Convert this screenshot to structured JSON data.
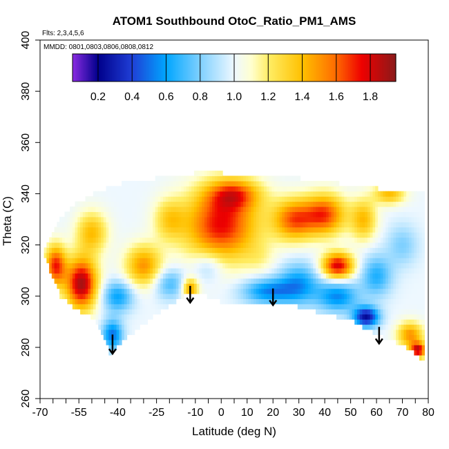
{
  "chart_data": {
    "type": "heatmap",
    "title": "ATOM1 Southbound OtoC_Ratio_PM1_AMS",
    "annotations": {
      "flights": "Flts: 2,3,4,5,6",
      "dates": "MMDD: 0801,0803,0806,0808,0812"
    },
    "xlabel": "Latitude (deg N)",
    "ylabel": "Theta (C)",
    "xlim": [
      -70,
      80
    ],
    "ylim": [
      260,
      400
    ],
    "x_ticks_labeled": [
      -70,
      -55,
      -40,
      -25,
      -10,
      0,
      10,
      20,
      30,
      40,
      50,
      60,
      70,
      80
    ],
    "x_ticks_minor": [
      -65,
      -60,
      -50,
      -45,
      -35,
      -30,
      -20,
      -15,
      -5,
      5,
      15,
      25,
      35,
      45,
      55,
      65,
      75
    ],
    "y_ticks": [
      260,
      280,
      300,
      320,
      340,
      360,
      380,
      400
    ],
    "colorbar": {
      "range": [
        0.05,
        1.95
      ],
      "ticks": [
        0.2,
        0.4,
        0.6,
        0.8,
        1.0,
        1.2,
        1.4,
        1.6,
        1.8
      ],
      "tick_labels": [
        "0.2",
        "0.4",
        "0.6",
        "0.8",
        "1.0",
        "1.2",
        "1.4",
        "1.6",
        "1.8"
      ],
      "stops": [
        {
          "v": 0.05,
          "c": "#8a2be2"
        },
        {
          "v": 0.2,
          "c": "#00008b"
        },
        {
          "v": 0.4,
          "c": "#1f3fd6"
        },
        {
          "v": 0.6,
          "c": "#00a6ff"
        },
        {
          "v": 0.8,
          "c": "#7fd0ff"
        },
        {
          "v": 1.0,
          "c": "#eef8ff"
        },
        {
          "v": 1.1,
          "c": "#ffffd0"
        },
        {
          "v": 1.2,
          "c": "#ffee66"
        },
        {
          "v": 1.4,
          "c": "#ffc000"
        },
        {
          "v": 1.6,
          "c": "#ff6a00"
        },
        {
          "v": 1.75,
          "c": "#ee0000"
        },
        {
          "v": 1.95,
          "c": "#8b1a1a"
        }
      ]
    },
    "field": {
      "lat_range": [
        -68,
        78
      ],
      "lat_step": 1,
      "theta_step": 2,
      "lower_boundary": [
        [
          -68,
          315
        ],
        [
          -62,
          300
        ],
        [
          -56,
          295
        ],
        [
          -50,
          292
        ],
        [
          -46,
          285
        ],
        [
          -43,
          278
        ],
        [
          -35,
          285
        ],
        [
          -25,
          293
        ],
        [
          -15,
          300
        ],
        [
          -12,
          302
        ],
        [
          -5,
          300
        ],
        [
          0,
          298
        ],
        [
          10,
          298
        ],
        [
          20,
          297
        ],
        [
          30,
          296
        ],
        [
          40,
          293
        ],
        [
          50,
          291
        ],
        [
          60,
          285
        ],
        [
          70,
          281
        ],
        [
          76,
          277
        ],
        [
          78,
          275
        ]
      ],
      "upper_boundary": [
        [
          -68,
          318
        ],
        [
          -62,
          330
        ],
        [
          -56,
          336
        ],
        [
          -48,
          341
        ],
        [
          -38,
          344
        ],
        [
          -30,
          345
        ],
        [
          -20,
          347
        ],
        [
          -10,
          348
        ],
        [
          0,
          348
        ],
        [
          10,
          347
        ],
        [
          20,
          346
        ],
        [
          30,
          346
        ],
        [
          40,
          345
        ],
        [
          50,
          343
        ],
        [
          60,
          342
        ],
        [
          70,
          341
        ],
        [
          78,
          340
        ]
      ],
      "blobs": [
        {
          "lat": -54,
          "th": 305,
          "amp": 0.9,
          "rx": 6,
          "ry": 10
        },
        {
          "lat": -64,
          "th": 312,
          "amp": 0.7,
          "rx": 4,
          "ry": 8
        },
        {
          "lat": -50,
          "th": 325,
          "amp": 0.4,
          "rx": 6,
          "ry": 8
        },
        {
          "lat": -40,
          "th": 300,
          "amp": -0.4,
          "rx": 6,
          "ry": 6
        },
        {
          "lat": -42,
          "th": 285,
          "amp": -0.5,
          "rx": 4,
          "ry": 6
        },
        {
          "lat": -30,
          "th": 312,
          "amp": 0.5,
          "rx": 7,
          "ry": 8
        },
        {
          "lat": -20,
          "th": 330,
          "amp": 0.3,
          "rx": 6,
          "ry": 8
        },
        {
          "lat": -20,
          "th": 305,
          "amp": -0.3,
          "rx": 6,
          "ry": 6
        },
        {
          "lat": -12,
          "th": 303,
          "amp": 0.5,
          "rx": 3,
          "ry": 4
        },
        {
          "lat": 0,
          "th": 328,
          "amp": 0.75,
          "rx": 14,
          "ry": 14
        },
        {
          "lat": 5,
          "th": 340,
          "amp": 0.5,
          "rx": 10,
          "ry": 6
        },
        {
          "lat": -5,
          "th": 312,
          "amp": -0.2,
          "rx": 6,
          "ry": 6
        },
        {
          "lat": 15,
          "th": 315,
          "amp": 0.1,
          "rx": 6,
          "ry": 6
        },
        {
          "lat": 18,
          "th": 302,
          "amp": -0.45,
          "rx": 10,
          "ry": 5
        },
        {
          "lat": 28,
          "th": 330,
          "amp": 0.6,
          "rx": 8,
          "ry": 8
        },
        {
          "lat": 40,
          "th": 332,
          "amp": 0.65,
          "rx": 8,
          "ry": 8
        },
        {
          "lat": 45,
          "th": 312,
          "amp": 0.8,
          "rx": 6,
          "ry": 5
        },
        {
          "lat": 30,
          "th": 305,
          "amp": -0.4,
          "rx": 8,
          "ry": 8
        },
        {
          "lat": 45,
          "th": 300,
          "amp": -0.45,
          "rx": 8,
          "ry": 6
        },
        {
          "lat": 56,
          "th": 292,
          "amp": -0.75,
          "rx": 5,
          "ry": 4
        },
        {
          "lat": 60,
          "th": 308,
          "amp": -0.35,
          "rx": 6,
          "ry": 8
        },
        {
          "lat": 55,
          "th": 330,
          "amp": 0.4,
          "rx": 5,
          "ry": 8
        },
        {
          "lat": 70,
          "th": 320,
          "amp": -0.2,
          "rx": 6,
          "ry": 8
        },
        {
          "lat": 73,
          "th": 285,
          "amp": 0.5,
          "rx": 5,
          "ry": 5
        },
        {
          "lat": 76,
          "th": 279,
          "amp": 0.8,
          "rx": 3,
          "ry": 3
        },
        {
          "lat": 65,
          "th": 340,
          "amp": 0.4,
          "rx": 6,
          "ry": 4
        }
      ]
    },
    "arrows": [
      {
        "lat": -42,
        "theta_top": 285,
        "theta_tip": 277.5
      },
      {
        "lat": -12,
        "theta_top": 304,
        "theta_tip": 297.5
      },
      {
        "lat": 20,
        "theta_top": 303,
        "theta_tip": 296.5
      },
      {
        "lat": 61,
        "theta_top": 288,
        "theta_tip": 281.5
      }
    ]
  }
}
